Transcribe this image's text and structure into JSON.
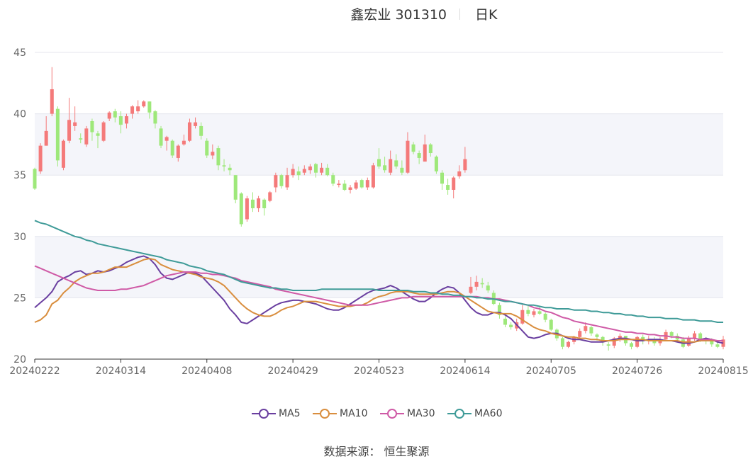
{
  "header": {
    "stock": "鑫宏业 301310",
    "period": "日K"
  },
  "source": "数据来源： 恒生聚源",
  "colors": {
    "up": "#f47a7a",
    "down": "#9ee87a",
    "MA5": "#6a3fa0",
    "MA10": "#d98e3e",
    "MA30": "#cf5aa6",
    "MA60": "#3f9b98",
    "band": "#f4f5fa",
    "grid": "#e4e6ee",
    "axis": "#666666"
  },
  "legend": [
    {
      "name": "MA5",
      "color": "#6a3fa0"
    },
    {
      "name": "MA10",
      "color": "#d98e3e"
    },
    {
      "name": "MA30",
      "color": "#cf5aa6"
    },
    {
      "name": "MA60",
      "color": "#3f9b98"
    }
  ],
  "chart_data": {
    "type": "candlestick",
    "ylim": [
      20,
      45
    ],
    "yticks": [
      20,
      25,
      30,
      35,
      40,
      45
    ],
    "xticks": [
      {
        "label": "20240222",
        "index": 0
      },
      {
        "label": "20240314",
        "index": 15
      },
      {
        "label": "20240408",
        "index": 30
      },
      {
        "label": "20240429",
        "index": 45
      },
      {
        "label": "20240523",
        "index": 60
      },
      {
        "label": "20240614",
        "index": 75
      },
      {
        "label": "20240705",
        "index": 90
      },
      {
        "label": "20240726",
        "index": 105
      },
      {
        "label": "20240815",
        "index": 120
      }
    ],
    "candles": [
      [
        35.5,
        33.9,
        35.6,
        33.8
      ],
      [
        35.3,
        37.4,
        37.6,
        35.1
      ],
      [
        37.4,
        38.6,
        39.8,
        37.4
      ],
      [
        40.0,
        42.0,
        43.8,
        39.8
      ],
      [
        40.4,
        36.2,
        40.6,
        35.7
      ],
      [
        35.6,
        37.8,
        37.9,
        35.4
      ],
      [
        37.8,
        39.5,
        41.3,
        37.6
      ],
      [
        39.0,
        39.3,
        40.6,
        38.6
      ],
      [
        38.0,
        37.9,
        38.4,
        37.6
      ],
      [
        37.5,
        38.8,
        39.0,
        37.3
      ],
      [
        39.4,
        38.5,
        39.6,
        37.8
      ],
      [
        38.4,
        38.2,
        38.6,
        37.2
      ],
      [
        37.8,
        39.3,
        39.4,
        37.7
      ],
      [
        39.6,
        40.1,
        40.2,
        39.4
      ],
      [
        40.2,
        39.7,
        40.4,
        39.3
      ],
      [
        39.8,
        39.1,
        40.2,
        38.4
      ],
      [
        39.2,
        39.8,
        40.0,
        38.8
      ],
      [
        40.0,
        40.6,
        40.7,
        39.6
      ],
      [
        40.2,
        40.6,
        41.1,
        40.0
      ],
      [
        40.6,
        41.0,
        41.1,
        40.5
      ],
      [
        41.0,
        40.1,
        41.0,
        39.6
      ],
      [
        40.2,
        39.2,
        40.3,
        38.8
      ],
      [
        38.8,
        37.4,
        39.0,
        37.2
      ],
      [
        37.8,
        38.1,
        38.2,
        37.0
      ],
      [
        37.8,
        36.6,
        37.9,
        36.4
      ],
      [
        36.4,
        37.4,
        37.5,
        36.1
      ],
      [
        37.5,
        37.8,
        38.3,
        37.4
      ],
      [
        37.8,
        39.3,
        39.6,
        37.7
      ],
      [
        39.0,
        39.3,
        39.7,
        38.8
      ],
      [
        39.0,
        38.2,
        39.3,
        37.9
      ],
      [
        37.8,
        36.6,
        38.0,
        36.4
      ],
      [
        36.6,
        36.9,
        37.5,
        36.3
      ],
      [
        37.2,
        35.8,
        37.4,
        35.4
      ],
      [
        35.8,
        35.7,
        36.3,
        35.3
      ],
      [
        35.6,
        35.4,
        35.9,
        35.0
      ],
      [
        35.0,
        33.0,
        35.0,
        32.7
      ],
      [
        33.5,
        31.0,
        33.6,
        30.8
      ],
      [
        31.4,
        33.1,
        33.3,
        31.2
      ],
      [
        33.0,
        32.3,
        33.6,
        32.0
      ],
      [
        32.3,
        33.1,
        33.3,
        32.0
      ],
      [
        33.0,
        32.3,
        33.1,
        31.7
      ],
      [
        32.9,
        33.6,
        33.7,
        32.8
      ],
      [
        34.0,
        35.0,
        35.2,
        33.6
      ],
      [
        35.0,
        34.1,
        35.1,
        33.9
      ],
      [
        34.0,
        35.0,
        35.6,
        33.8
      ],
      [
        35.0,
        35.5,
        35.9,
        34.8
      ],
      [
        35.3,
        35.0,
        35.7,
        34.6
      ],
      [
        35.2,
        35.5,
        35.8,
        35.0
      ],
      [
        35.4,
        35.7,
        35.9,
        35.1
      ],
      [
        35.9,
        35.2,
        36.0,
        34.8
      ],
      [
        35.2,
        35.6,
        36.0,
        35.0
      ],
      [
        35.6,
        35.0,
        35.9,
        34.9
      ],
      [
        35.0,
        34.3,
        35.2,
        34.1
      ],
      [
        34.2,
        34.3,
        34.6,
        34.0
      ],
      [
        34.3,
        33.8,
        34.6,
        33.7
      ],
      [
        33.8,
        34.0,
        34.2,
        33.5
      ],
      [
        33.9,
        34.4,
        34.6,
        33.8
      ],
      [
        34.6,
        34.0,
        34.7,
        33.9
      ],
      [
        34.0,
        34.6,
        34.8,
        33.8
      ],
      [
        34.0,
        35.8,
        36.0,
        33.9
      ],
      [
        36.3,
        35.7,
        37.2,
        35.5
      ],
      [
        35.8,
        35.4,
        36.5,
        35.2
      ],
      [
        35.2,
        36.3,
        37.0,
        35.0
      ],
      [
        36.2,
        35.7,
        36.7,
        35.5
      ],
      [
        35.6,
        35.2,
        36.2,
        35.0
      ],
      [
        35.2,
        37.8,
        38.5,
        35.1
      ],
      [
        37.5,
        36.9,
        37.7,
        36.7
      ],
      [
        36.8,
        36.4,
        37.0,
        35.9
      ],
      [
        36.1,
        37.5,
        38.3,
        36.1
      ],
      [
        37.5,
        36.8,
        37.6,
        36.5
      ],
      [
        36.5,
        35.3,
        36.6,
        35.1
      ],
      [
        35.2,
        34.3,
        35.4,
        33.8
      ],
      [
        34.2,
        33.8,
        34.7,
        33.4
      ],
      [
        33.8,
        34.8,
        34.9,
        33.1
      ],
      [
        34.9,
        35.3,
        35.8,
        34.7
      ],
      [
        35.4,
        36.3,
        37.3,
        35.2
      ],
      [
        25.4,
        25.9,
        26.7,
        25.3
      ],
      [
        25.9,
        26.3,
        26.8,
        25.6
      ],
      [
        26.2,
        26.1,
        26.6,
        25.8
      ],
      [
        26.0,
        25.6,
        26.3,
        25.4
      ],
      [
        25.4,
        24.5,
        25.6,
        24.4
      ],
      [
        24.4,
        23.6,
        24.6,
        23.3
      ],
      [
        23.3,
        22.8,
        23.5,
        22.6
      ],
      [
        22.8,
        22.6,
        23.0,
        22.4
      ],
      [
        22.5,
        23.0,
        23.3,
        22.3
      ],
      [
        22.9,
        24.0,
        24.4,
        22.8
      ],
      [
        24.0,
        23.7,
        24.4,
        23.5
      ],
      [
        23.6,
        23.9,
        24.1,
        23.4
      ],
      [
        23.9,
        23.7,
        24.3,
        23.6
      ],
      [
        23.7,
        23.2,
        23.8,
        23.0
      ],
      [
        23.2,
        22.4,
        23.3,
        22.3
      ],
      [
        22.4,
        21.7,
        22.5,
        21.5
      ],
      [
        21.7,
        21.0,
        21.8,
        20.8
      ],
      [
        21.0,
        21.4,
        21.5,
        20.9
      ],
      [
        21.4,
        21.8,
        21.9,
        21.2
      ],
      [
        21.8,
        22.3,
        22.5,
        21.6
      ],
      [
        22.3,
        22.7,
        23.0,
        22.1
      ],
      [
        22.6,
        22.1,
        22.7,
        21.9
      ],
      [
        22.0,
        21.8,
        22.1,
        21.5
      ],
      [
        21.8,
        21.4,
        21.9,
        21.1
      ],
      [
        21.2,
        21.1,
        21.4,
        20.7
      ],
      [
        21.1,
        21.7,
        21.8,
        20.9
      ],
      [
        21.7,
        21.9,
        22.1,
        21.4
      ],
      [
        21.9,
        21.3,
        21.9,
        21.1
      ],
      [
        21.3,
        21.0,
        21.4,
        20.8
      ],
      [
        21.0,
        21.8,
        21.9,
        20.9
      ],
      [
        21.8,
        21.5,
        22.0,
        21.2
      ],
      [
        21.5,
        21.6,
        21.9,
        21.2
      ],
      [
        21.6,
        21.3,
        21.8,
        21.1
      ],
      [
        21.3,
        21.6,
        21.8,
        21.1
      ],
      [
        21.6,
        22.2,
        22.4,
        21.5
      ],
      [
        22.2,
        21.9,
        22.3,
        21.7
      ],
      [
        21.9,
        21.6,
        22.1,
        21.4
      ],
      [
        21.6,
        21.0,
        21.8,
        20.9
      ],
      [
        21.1,
        21.7,
        21.9,
        21.0
      ],
      [
        21.7,
        22.1,
        22.3,
        21.5
      ],
      [
        22.1,
        21.6,
        22.2,
        21.4
      ],
      [
        21.6,
        21.5,
        21.8,
        21.2
      ],
      [
        21.5,
        21.2,
        21.7,
        21.0
      ],
      [
        21.2,
        21.0,
        21.4,
        20.9
      ],
      [
        21.0,
        21.6,
        21.9,
        20.8
      ]
    ],
    "series": [
      {
        "name": "MA5",
        "values": [
          24.2,
          24.6,
          25.0,
          25.5,
          26.3,
          26.6,
          26.8,
          27.1,
          27.2,
          26.9,
          27.0,
          27.2,
          27.1,
          27.2,
          27.4,
          27.6,
          27.9,
          28.1,
          28.3,
          28.4,
          28.2,
          27.7,
          27.0,
          26.6,
          26.5,
          26.7,
          26.9,
          27.1,
          27.0,
          26.8,
          26.3,
          25.8,
          25.3,
          24.8,
          24.1,
          23.6,
          23.0,
          22.9,
          23.2,
          23.5,
          23.8,
          24.1,
          24.4,
          24.6,
          24.7,
          24.8,
          24.8,
          24.7,
          24.6,
          24.5,
          24.3,
          24.1,
          24.0,
          24.0,
          24.2,
          24.5,
          24.8,
          25.1,
          25.4,
          25.6,
          25.7,
          25.8,
          26.0,
          25.8,
          25.5,
          25.2,
          24.9,
          24.7,
          24.7,
          25.0,
          25.4,
          25.7,
          25.9,
          25.8,
          25.4,
          24.8,
          24.2,
          23.8,
          23.6,
          23.6,
          23.8,
          23.8,
          23.6,
          23.3,
          22.8,
          22.3,
          21.8,
          21.7,
          21.8,
          22.0,
          22.1,
          22.1,
          21.9,
          21.7,
          21.6,
          21.6,
          21.5,
          21.4,
          21.4,
          21.4,
          21.5,
          21.6,
          21.7,
          21.7,
          21.6,
          21.5,
          21.5,
          21.6,
          21.6,
          21.6,
          21.5,
          21.5,
          21.4,
          21.3,
          21.3,
          21.4,
          21.6,
          21.7,
          21.6,
          21.4,
          21.3
        ]
      },
      {
        "name": "MA10",
        "values": [
          23.0,
          23.2,
          23.6,
          24.5,
          24.8,
          25.4,
          25.8,
          26.3,
          26.6,
          26.8,
          27.0,
          27.0,
          27.1,
          27.3,
          27.5,
          27.5,
          27.5,
          27.7,
          27.9,
          28.1,
          28.2,
          28.1,
          27.7,
          27.5,
          27.3,
          27.2,
          27.1,
          27.0,
          26.9,
          26.7,
          26.6,
          26.5,
          26.3,
          26.0,
          25.5,
          25.0,
          24.5,
          24.1,
          23.8,
          23.6,
          23.5,
          23.5,
          23.7,
          24.0,
          24.2,
          24.3,
          24.5,
          24.7,
          24.7,
          24.7,
          24.6,
          24.5,
          24.4,
          24.3,
          24.3,
          24.3,
          24.4,
          24.4,
          24.6,
          24.9,
          25.1,
          25.2,
          25.4,
          25.5,
          25.5,
          25.5,
          25.4,
          25.3,
          25.3,
          25.3,
          25.3,
          25.4,
          25.5,
          25.5,
          25.4,
          25.1,
          24.8,
          24.5,
          24.2,
          23.9,
          23.8,
          23.7,
          23.7,
          23.7,
          23.5,
          23.2,
          22.9,
          22.6,
          22.4,
          22.3,
          22.1,
          22.0,
          21.9,
          21.8,
          21.8,
          21.7,
          21.7,
          21.6,
          21.6,
          21.5,
          21.5,
          21.5,
          21.6,
          21.6,
          21.6,
          21.6,
          21.6,
          21.5,
          21.5,
          21.5,
          21.5,
          21.5,
          21.5,
          21.4,
          21.4,
          21.4,
          21.5,
          21.5,
          21.5,
          21.5,
          21.5
        ]
      },
      {
        "name": "MA30",
        "values": [
          27.6,
          27.4,
          27.2,
          27.0,
          26.8,
          26.6,
          26.4,
          26.2,
          26.0,
          25.8,
          25.7,
          25.6,
          25.6,
          25.6,
          25.6,
          25.7,
          25.7,
          25.8,
          25.9,
          26.0,
          26.2,
          26.4,
          26.6,
          26.8,
          26.9,
          27.0,
          27.1,
          27.1,
          27.1,
          27.0,
          27.0,
          26.9,
          26.9,
          26.8,
          26.7,
          26.6,
          26.4,
          26.3,
          26.2,
          26.1,
          26.0,
          25.9,
          25.7,
          25.6,
          25.5,
          25.4,
          25.3,
          25.2,
          25.1,
          25.0,
          24.9,
          24.8,
          24.7,
          24.6,
          24.5,
          24.4,
          24.4,
          24.4,
          24.4,
          24.5,
          24.6,
          24.7,
          24.8,
          24.9,
          25.0,
          25.0,
          25.1,
          25.1,
          25.1,
          25.1,
          25.1,
          25.1,
          25.1,
          25.1,
          25.1,
          25.1,
          25.1,
          25.1,
          25.0,
          25.0,
          24.9,
          24.9,
          24.8,
          24.7,
          24.6,
          24.5,
          24.4,
          24.2,
          24.1,
          23.9,
          23.8,
          23.6,
          23.4,
          23.3,
          23.1,
          23.0,
          22.9,
          22.8,
          22.7,
          22.6,
          22.5,
          22.4,
          22.3,
          22.2,
          22.2,
          22.1,
          22.1,
          22.0,
          22.0,
          21.9,
          21.9,
          21.8,
          21.8,
          21.7,
          21.7,
          21.7,
          21.6,
          21.6,
          21.6,
          21.5,
          21.5
        ]
      },
      {
        "name": "MA60",
        "values": [
          31.3,
          31.1,
          31.0,
          30.8,
          30.6,
          30.4,
          30.2,
          30.0,
          29.9,
          29.7,
          29.6,
          29.4,
          29.3,
          29.2,
          29.1,
          29.0,
          28.9,
          28.8,
          28.7,
          28.6,
          28.5,
          28.4,
          28.3,
          28.1,
          28.0,
          27.9,
          27.8,
          27.6,
          27.5,
          27.4,
          27.2,
          27.1,
          27.0,
          26.9,
          26.7,
          26.5,
          26.3,
          26.2,
          26.1,
          26.0,
          25.9,
          25.8,
          25.8,
          25.7,
          25.7,
          25.6,
          25.6,
          25.6,
          25.6,
          25.6,
          25.7,
          25.7,
          25.7,
          25.7,
          25.7,
          25.7,
          25.7,
          25.7,
          25.7,
          25.7,
          25.6,
          25.6,
          25.6,
          25.6,
          25.6,
          25.6,
          25.5,
          25.5,
          25.5,
          25.4,
          25.4,
          25.3,
          25.3,
          25.2,
          25.2,
          25.1,
          25.1,
          25.0,
          25.0,
          24.9,
          24.9,
          24.8,
          24.7,
          24.7,
          24.6,
          24.5,
          24.4,
          24.4,
          24.3,
          24.2,
          24.2,
          24.1,
          24.1,
          24.1,
          24.0,
          24.0,
          24.0,
          23.9,
          23.9,
          23.8,
          23.8,
          23.7,
          23.7,
          23.6,
          23.6,
          23.5,
          23.5,
          23.4,
          23.4,
          23.4,
          23.3,
          23.3,
          23.3,
          23.2,
          23.2,
          23.2,
          23.1,
          23.1,
          23.1,
          23.0,
          23.0
        ]
      }
    ]
  }
}
